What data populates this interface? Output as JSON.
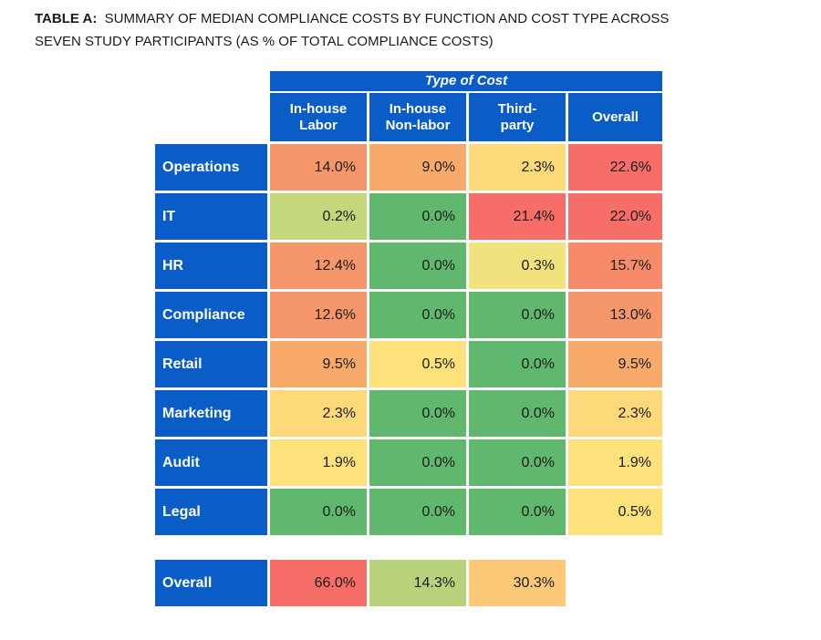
{
  "title": {
    "prefix": "TABLE A:",
    "line1": "SUMMARY OF MEDIAN COMPLIANCE COSTS BY FUNCTION AND COST TYPE ACROSS",
    "line2": "SEVEN STUDY PARTICIPANTS (AS % OF TOTAL COMPLIANCE COSTS)"
  },
  "chart_data": {
    "type": "table",
    "group_header": "Type of Cost",
    "columns": [
      "In-house\nLabor",
      "In-house\nNon-labor",
      "Third-\nparty",
      "Overall"
    ],
    "rows": [
      {
        "label": "Operations",
        "values": [
          "14.0%",
          "9.0%",
          "2.3%",
          "22.6%"
        ],
        "colors": [
          "#f6976b",
          "#f8aa6b",
          "#fdd97a",
          "#f66e67"
        ]
      },
      {
        "label": "IT",
        "values": [
          "0.2%",
          "0.0%",
          "21.4%",
          "22.0%"
        ],
        "colors": [
          "#c4d77a",
          "#5fb86e",
          "#f66e67",
          "#f66e67"
        ]
      },
      {
        "label": "HR",
        "values": [
          "12.4%",
          "0.0%",
          "0.3%",
          "15.7%"
        ],
        "colors": [
          "#f6976b",
          "#5fb86e",
          "#f1e27e",
          "#f68a69"
        ]
      },
      {
        "label": "Compliance",
        "values": [
          "12.6%",
          "0.0%",
          "0.0%",
          "13.0%"
        ],
        "colors": [
          "#f6976b",
          "#5fb86e",
          "#5fb86e",
          "#f6976b"
        ]
      },
      {
        "label": "Retail",
        "values": [
          "9.5%",
          "0.5%",
          "0.0%",
          "9.5%"
        ],
        "colors": [
          "#f8aa6b",
          "#fde27b",
          "#5fb86e",
          "#f8aa6b"
        ]
      },
      {
        "label": "Marketing",
        "values": [
          "2.3%",
          "0.0%",
          "0.0%",
          "2.3%"
        ],
        "colors": [
          "#fdd97a",
          "#5fb86e",
          "#5fb86e",
          "#fdd97a"
        ]
      },
      {
        "label": "Audit",
        "values": [
          "1.9%",
          "0.0%",
          "0.0%",
          "1.9%"
        ],
        "colors": [
          "#fde27b",
          "#5fb86e",
          "#5fb86e",
          "#fde27b"
        ]
      },
      {
        "label": "Legal",
        "values": [
          "0.0%",
          "0.0%",
          "0.0%",
          "0.5%"
        ],
        "colors": [
          "#5fb86e",
          "#5fb86e",
          "#5fb86e",
          "#fde27b"
        ]
      }
    ],
    "total_row": {
      "label": "Overall",
      "values": [
        "66.0%",
        "14.3%",
        "30.3%"
      ],
      "colors": [
        "#f66e67",
        "#b8d27c",
        "#fdc979"
      ]
    }
  }
}
